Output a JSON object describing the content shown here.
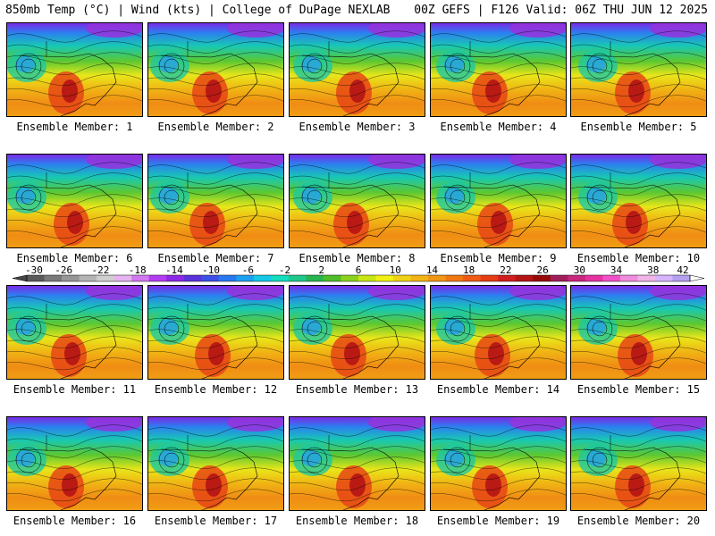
{
  "header": {
    "left": "850mb Temp (°C) | Wind (kts) | College of DuPage NEXLAB",
    "right": "00Z GEFS | F126 Valid: 06Z THU JUN 12 2025"
  },
  "panels": [
    {
      "member": 1,
      "label": "Ensemble Member: 1"
    },
    {
      "member": 2,
      "label": "Ensemble Member: 2"
    },
    {
      "member": 3,
      "label": "Ensemble Member: 3"
    },
    {
      "member": 4,
      "label": "Ensemble Member: 4"
    },
    {
      "member": 5,
      "label": "Ensemble Member: 5"
    },
    {
      "member": 6,
      "label": "Ensemble Member: 6"
    },
    {
      "member": 7,
      "label": "Ensemble Member: 7"
    },
    {
      "member": 8,
      "label": "Ensemble Member: 8"
    },
    {
      "member": 9,
      "label": "Ensemble Member: 9"
    },
    {
      "member": 10,
      "label": "Ensemble Member: 10"
    },
    {
      "member": 11,
      "label": "Ensemble Member: 11"
    },
    {
      "member": 12,
      "label": "Ensemble Member: 12"
    },
    {
      "member": 13,
      "label": "Ensemble Member: 13"
    },
    {
      "member": 14,
      "label": "Ensemble Member: 14"
    },
    {
      "member": 15,
      "label": "Ensemble Member: 15"
    },
    {
      "member": 16,
      "label": "Ensemble Member: 16"
    },
    {
      "member": 17,
      "label": "Ensemble Member: 17"
    },
    {
      "member": 18,
      "label": "Ensemble Member: 18"
    },
    {
      "member": 19,
      "label": "Ensemble Member: 19"
    },
    {
      "member": 20,
      "label": "Ensemble Member: 20"
    }
  ],
  "colorbar": {
    "ticks": [
      "-30",
      "-26",
      "-22",
      "-18",
      "-14",
      "-10",
      "-6",
      "-2",
      "2",
      "6",
      "10",
      "14",
      "18",
      "22",
      "26",
      "30",
      "34",
      "38",
      "42"
    ],
    "colors": [
      "#5a5a5a",
      "#7a7a7a",
      "#969696",
      "#b4b4b4",
      "#cfcfcf",
      "#e6b4f0",
      "#d278f0",
      "#b43cf0",
      "#8c28e6",
      "#5a32dc",
      "#3c50e6",
      "#2878f0",
      "#1ea0f0",
      "#14c8e6",
      "#14dcbe",
      "#1ec88c",
      "#28b450",
      "#50be28",
      "#8cd21e",
      "#c8e614",
      "#f0f014",
      "#f0d214",
      "#f0b414",
      "#f09614",
      "#f07814",
      "#f05a14",
      "#e63c14",
      "#d21e1e",
      "#b41414",
      "#960a0a",
      "#a01e5a",
      "#c8287d",
      "#e632a0",
      "#f050c8",
      "#f08cdc",
      "#f0b4e6",
      "#d8b4ff",
      "#b4a0f0"
    ]
  }
}
